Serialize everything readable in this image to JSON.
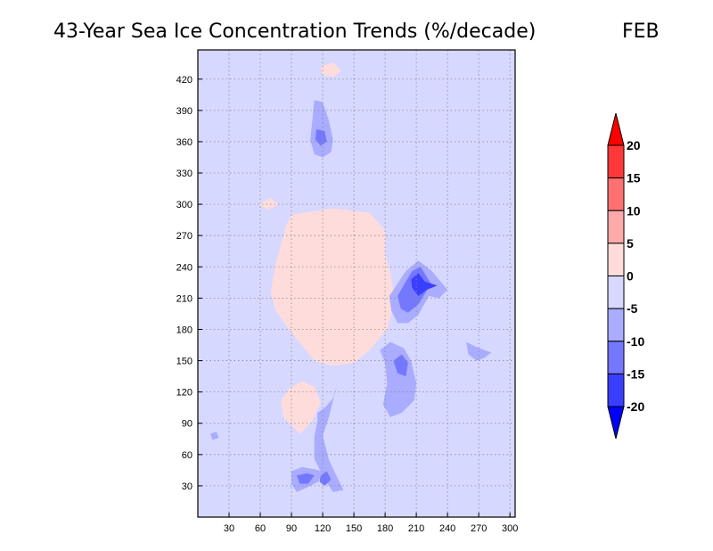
{
  "chart_data": {
    "type": "heatmap",
    "title": "43-Year Sea Ice Concentration Trends (%/decade)",
    "month": "FEB",
    "xlabel": "",
    "ylabel": "",
    "xlim": [
      0,
      305
    ],
    "ylim": [
      0,
      448
    ],
    "x_ticks": [
      30,
      60,
      90,
      120,
      150,
      180,
      210,
      240,
      270,
      300
    ],
    "y_ticks": [
      30,
      60,
      90,
      120,
      150,
      180,
      210,
      240,
      270,
      300,
      330,
      360,
      390,
      420
    ],
    "grid": true,
    "background_level": "-5 to 0",
    "colorbar": {
      "labels": [
        "20",
        "15",
        "10",
        "5",
        "0",
        "-5",
        "-10",
        "-15",
        "-20"
      ],
      "bins": [
        {
          "range": [
            20,
            25
          ],
          "color": "#ff0000"
        },
        {
          "range": [
            15,
            20
          ],
          "color": "#ff3838"
        },
        {
          "range": [
            10,
            15
          ],
          "color": "#ff7070"
        },
        {
          "range": [
            5,
            10
          ],
          "color": "#ffaaaa"
        },
        {
          "range": [
            0,
            5
          ],
          "color": "#ffdcdc"
        },
        {
          "range": [
            -5,
            0
          ],
          "color": "#d6d8ff"
        },
        {
          "range": [
            -10,
            -5
          ],
          "color": "#a9acff"
        },
        {
          "range": [
            -15,
            -10
          ],
          "color": "#7478ff"
        },
        {
          "range": [
            -20,
            -15
          ],
          "color": "#3a3eff"
        },
        {
          "range": [
            -25,
            -20
          ],
          "color": "#0000ff"
        }
      ]
    },
    "regions": [
      {
        "level": "0 to 5",
        "polygon": [
          [
            90,
            290
          ],
          [
            130,
            296
          ],
          [
            165,
            292
          ],
          [
            180,
            275
          ],
          [
            180,
            252
          ],
          [
            185,
            235
          ],
          [
            188,
            215
          ],
          [
            186,
            195
          ],
          [
            182,
            180
          ],
          [
            175,
            172
          ],
          [
            165,
            160
          ],
          [
            150,
            148
          ],
          [
            130,
            145
          ],
          [
            112,
            150
          ],
          [
            100,
            165
          ],
          [
            86,
            182
          ],
          [
            75,
            198
          ],
          [
            70,
            215
          ],
          [
            74,
            240
          ],
          [
            80,
            262
          ],
          [
            85,
            280
          ]
        ]
      },
      {
        "level": "0 to 5",
        "polygon": [
          [
            98,
            80
          ],
          [
            110,
            92
          ],
          [
            118,
            110
          ],
          [
            112,
            125
          ],
          [
            100,
            130
          ],
          [
            88,
            124
          ],
          [
            80,
            112
          ],
          [
            82,
            96
          ]
        ]
      },
      {
        "level": "0 to 5",
        "polygon": [
          [
            118,
            432
          ],
          [
            130,
            436
          ],
          [
            138,
            428
          ],
          [
            130,
            422
          ],
          [
            120,
            424
          ]
        ]
      },
      {
        "level": "0 to 5",
        "polygon": [
          [
            58,
            300
          ],
          [
            70,
            306
          ],
          [
            78,
            300
          ],
          [
            68,
            295
          ]
        ]
      },
      {
        "level": "-10 to -5",
        "polygon": [
          [
            112,
            400
          ],
          [
            120,
            398
          ],
          [
            126,
            380
          ],
          [
            130,
            362
          ],
          [
            128,
            350
          ],
          [
            120,
            345
          ],
          [
            112,
            348
          ],
          [
            108,
            362
          ],
          [
            110,
            380
          ]
        ]
      },
      {
        "level": "-15 to -10",
        "polygon": [
          [
            114,
            372
          ],
          [
            122,
            370
          ],
          [
            124,
            360
          ],
          [
            118,
            356
          ],
          [
            113,
            362
          ]
        ]
      },
      {
        "level": "-10 to -5",
        "polygon": [
          [
            184,
            212
          ],
          [
            192,
            224
          ],
          [
            200,
            236
          ],
          [
            212,
            246
          ],
          [
            225,
            236
          ],
          [
            240,
            218
          ],
          [
            232,
            210
          ],
          [
            222,
            212
          ],
          [
            212,
            194
          ],
          [
            202,
            186
          ],
          [
            192,
            186
          ],
          [
            186,
            198
          ]
        ]
      },
      {
        "level": "-15 to -10",
        "polygon": [
          [
            192,
            212
          ],
          [
            200,
            226
          ],
          [
            206,
            236
          ],
          [
            214,
            240
          ],
          [
            224,
            224
          ],
          [
            218,
            214
          ],
          [
            212,
            204
          ],
          [
            202,
            196
          ],
          [
            195,
            200
          ]
        ]
      },
      {
        "level": "-20 to -15",
        "polygon": [
          [
            205,
            228
          ],
          [
            212,
            234
          ],
          [
            218,
            226
          ],
          [
            230,
            222
          ],
          [
            220,
            218
          ],
          [
            212,
            212
          ],
          [
            206,
            220
          ]
        ]
      },
      {
        "level": "-10 to -5",
        "polygon": [
          [
            175,
            160
          ],
          [
            185,
            168
          ],
          [
            198,
            162
          ],
          [
            205,
            150
          ],
          [
            210,
            128
          ],
          [
            208,
            112
          ],
          [
            196,
            100
          ],
          [
            185,
            96
          ],
          [
            178,
            108
          ],
          [
            182,
            128
          ],
          [
            180,
            148
          ]
        ]
      },
      {
        "level": "-15 to -10",
        "polygon": [
          [
            188,
            150
          ],
          [
            196,
            156
          ],
          [
            202,
            148
          ],
          [
            200,
            135
          ],
          [
            192,
            138
          ]
        ]
      },
      {
        "level": "-10 to -5",
        "polygon": [
          [
            115,
            100
          ],
          [
            122,
            105
          ],
          [
            130,
            114
          ],
          [
            134,
            128
          ],
          [
            130,
            112
          ],
          [
            126,
            96
          ],
          [
            120,
            78
          ],
          [
            126,
            55
          ],
          [
            134,
            38
          ],
          [
            140,
            26
          ],
          [
            130,
            24
          ],
          [
            122,
            36
          ],
          [
            112,
            56
          ],
          [
            112,
            78
          ],
          [
            115,
            92
          ]
        ]
      },
      {
        "level": "-15 to -10",
        "polygon": [
          [
            118,
            40
          ],
          [
            124,
            44
          ],
          [
            128,
            36
          ],
          [
            122,
            30
          ],
          [
            117,
            34
          ]
        ]
      },
      {
        "level": "-10 to -5",
        "polygon": [
          [
            90,
            44
          ],
          [
            100,
            48
          ],
          [
            112,
            46
          ],
          [
            120,
            44
          ],
          [
            116,
            34
          ],
          [
            104,
            28
          ],
          [
            95,
            24
          ],
          [
            90,
            32
          ]
        ]
      },
      {
        "level": "-15 to -10",
        "polygon": [
          [
            95,
            40
          ],
          [
            105,
            42
          ],
          [
            112,
            40
          ],
          [
            106,
            32
          ],
          [
            98,
            32
          ]
        ]
      },
      {
        "level": "-10 to -5",
        "polygon": [
          [
            258,
            168
          ],
          [
            266,
            164
          ],
          [
            276,
            160
          ],
          [
            282,
            158
          ],
          [
            276,
            153
          ],
          [
            268,
            150
          ],
          [
            260,
            156
          ]
        ]
      },
      {
        "level": "-10 to -5",
        "polygon": [
          [
            12,
            80
          ],
          [
            18,
            82
          ],
          [
            20,
            76
          ],
          [
            14,
            74
          ]
        ]
      }
    ]
  }
}
